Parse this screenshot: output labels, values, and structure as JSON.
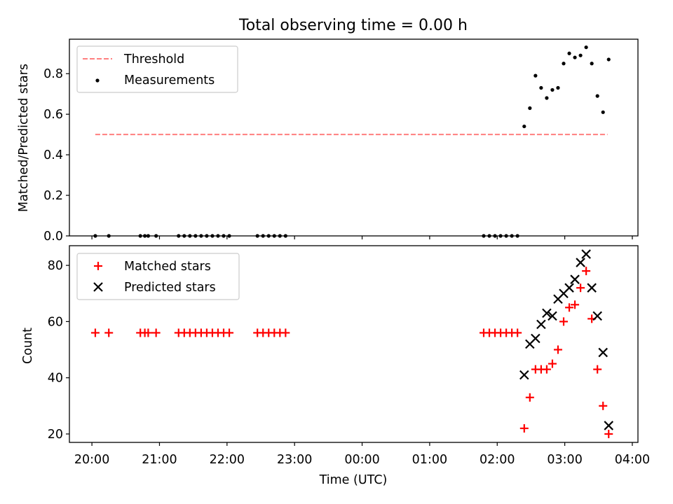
{
  "figure": {
    "title": "Total observing time = 0.00 h",
    "xlabel": "Time (UTC)"
  },
  "colors": {
    "threshold": "#ff7f7f",
    "measurements": "#000000",
    "matched": "#ff0000",
    "predicted": "#000000"
  },
  "chart_data": [
    {
      "type": "scatter",
      "panel": "ratio",
      "ylabel": "Matched/Predicted stars",
      "ylim": [
        0,
        0.97
      ],
      "yticks": [
        0.0,
        0.2,
        0.4,
        0.6,
        0.8
      ],
      "ytick_labels": [
        "0.0",
        "0.2",
        "0.4",
        "0.6",
        "0.8"
      ],
      "xlim": [
        "19:40",
        "04:05"
      ],
      "xticks": [
        "20:00",
        "21:00",
        "22:00",
        "23:00",
        "00:00",
        "01:00",
        "02:00",
        "03:00",
        "04:00"
      ],
      "grid": false,
      "legend": {
        "position": "top-left",
        "entries": [
          "Threshold",
          "Measurements"
        ]
      },
      "series": [
        {
          "name": "Threshold",
          "style": "dashed-line",
          "x": [
            "20:03",
            "03:38"
          ],
          "y": [
            0.5,
            0.5
          ]
        },
        {
          "name": "Measurements",
          "style": "dots",
          "x": [
            "20:03",
            "20:15",
            "20:43",
            "20:47",
            "20:50",
            "20:57",
            "21:17",
            "21:22",
            "21:27",
            "21:32",
            "21:37",
            "21:42",
            "21:47",
            "21:52",
            "21:57",
            "22:02",
            "22:27",
            "22:32",
            "22:37",
            "22:42",
            "22:47",
            "22:52",
            "01:48",
            "01:53",
            "01:58",
            "02:03",
            "02:08",
            "02:13",
            "02:18",
            "02:24",
            "02:29",
            "02:34",
            "02:39",
            "02:44",
            "02:49",
            "02:54",
            "02:59",
            "03:04",
            "03:09",
            "03:14",
            "03:19",
            "03:24",
            "03:29",
            "03:34",
            "03:39"
          ],
          "y": [
            0,
            0,
            0,
            0,
            0,
            0,
            0,
            0,
            0,
            0,
            0,
            0,
            0,
            0,
            0,
            0,
            0,
            0,
            0,
            0,
            0,
            0,
            0,
            0,
            0,
            0,
            0,
            0,
            0,
            0.54,
            0.63,
            0.79,
            0.73,
            0.68,
            0.72,
            0.73,
            0.85,
            0.9,
            0.88,
            0.89,
            0.93,
            0.85,
            0.69,
            0.61,
            0.87
          ]
        }
      ]
    },
    {
      "type": "scatter",
      "panel": "counts",
      "ylabel": "Count",
      "ylim": [
        17,
        87
      ],
      "yticks": [
        20,
        40,
        60,
        80
      ],
      "ytick_labels": [
        "20",
        "40",
        "60",
        "80"
      ],
      "xlim": [
        "19:40",
        "04:05"
      ],
      "xticks": [
        "20:00",
        "21:00",
        "22:00",
        "23:00",
        "00:00",
        "01:00",
        "02:00",
        "03:00",
        "04:00"
      ],
      "xtick_labels": [
        "20:00",
        "21:00",
        "22:00",
        "23:00",
        "00:00",
        "01:00",
        "02:00",
        "03:00",
        "04:00"
      ],
      "grid": false,
      "legend": {
        "position": "top-left",
        "entries": [
          "Matched stars",
          "Predicted stars"
        ]
      },
      "series": [
        {
          "name": "Matched stars",
          "style": "plus",
          "x": [
            "20:03",
            "20:15",
            "20:43",
            "20:47",
            "20:50",
            "20:57",
            "21:17",
            "21:22",
            "21:27",
            "21:32",
            "21:37",
            "21:42",
            "21:47",
            "21:52",
            "21:57",
            "22:02",
            "22:27",
            "22:32",
            "22:37",
            "22:42",
            "22:47",
            "22:52",
            "01:48",
            "01:53",
            "01:58",
            "02:03",
            "02:08",
            "02:13",
            "02:18",
            "02:24",
            "02:29",
            "02:34",
            "02:39",
            "02:44",
            "02:49",
            "02:54",
            "02:59",
            "03:04",
            "03:09",
            "03:14",
            "03:19",
            "03:24",
            "03:29",
            "03:34",
            "03:39"
          ],
          "y": [
            56,
            56,
            56,
            56,
            56,
            56,
            56,
            56,
            56,
            56,
            56,
            56,
            56,
            56,
            56,
            56,
            56,
            56,
            56,
            56,
            56,
            56,
            56,
            56,
            56,
            56,
            56,
            56,
            56,
            22,
            33,
            43,
            43,
            43,
            45,
            50,
            60,
            65,
            66,
            72,
            78,
            61,
            43,
            30,
            20
          ]
        },
        {
          "name": "Predicted stars",
          "style": "x",
          "x": [
            "02:24",
            "02:29",
            "02:34",
            "02:39",
            "02:44",
            "02:49",
            "02:54",
            "02:59",
            "03:04",
            "03:09",
            "03:14",
            "03:19",
            "03:24",
            "03:29",
            "03:34",
            "03:39"
          ],
          "y": [
            41,
            52,
            54,
            59,
            63,
            62,
            68,
            70,
            72,
            75,
            81,
            84,
            72,
            62,
            49,
            23
          ]
        }
      ]
    }
  ]
}
